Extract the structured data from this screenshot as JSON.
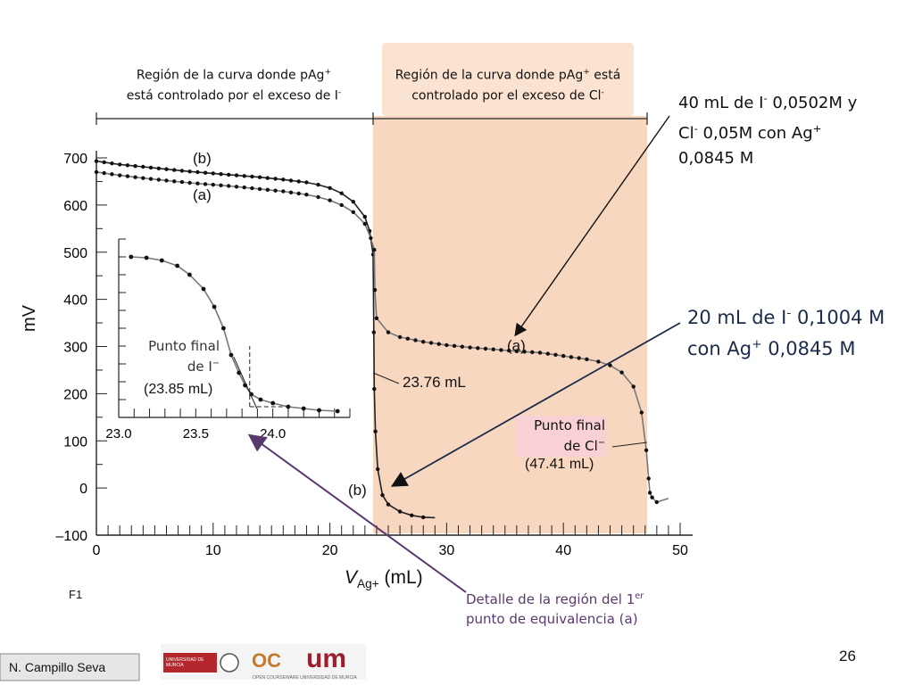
{
  "slide": {
    "page_number": "26",
    "author": "N. Campillo Seva",
    "figure_label": "F1",
    "logos": {
      "university": "UNIVERSIDAD DE MURCIA",
      "ocw": "OC",
      "um": "um",
      "ocw_caption": "OPEN COURSEWARE  UNIVERSIDAD DE MURCIA"
    }
  },
  "regions": {
    "left": {
      "line1": "Región  de la curva donde pAg",
      "sup1": "+",
      "line2": "está controlado por el exceso de I",
      "sup2": "-"
    },
    "right": {
      "line1": "Región de la curva donde pAg",
      "sup1": "+",
      "line1b": " está",
      "line2": "controlado por el exceso de Cl",
      "sup2": "-"
    }
  },
  "annotations": {
    "mix": {
      "l1a": "40 mL de I",
      "l1s": "-",
      "l1b": " 0,0502M y",
      "l2a": "Cl",
      "l2s": "-",
      "l2b": " 0,05M con Ag",
      "l2s2": "+",
      "l3": "0,0845 M"
    },
    "single": {
      "l1a": "20 mL de  I",
      "l1s": "-",
      "l1b": " 0,1004 M",
      "l2a": "con Ag",
      "l2s": "+",
      "l2b": " 0,0845 M"
    },
    "detail": {
      "l1a": "Detalle de la región del 1",
      "l1s": "er",
      "l2": "punto de equivalencia (a)"
    }
  },
  "colors": {
    "region_fill": "#f8d7c0",
    "region_fill_strong": "#f5c6a3",
    "title_box": "#fbe3d1",
    "pink_box": "#f9d0d4",
    "arrow_purple": "#5a3a6e",
    "curve_gray": "#777777"
  },
  "chart_data": {
    "type": "line",
    "xlabel_main": "V",
    "xlabel_sub": "Ag+",
    "xlabel_unit": " (mL)",
    "ylabel": "mV",
    "xlim": [
      0,
      50
    ],
    "ylim": [
      -100,
      700
    ],
    "x_ticks": [
      "0",
      "10",
      "20",
      "30",
      "40",
      "50"
    ],
    "y_ticks": [
      "700",
      "600",
      "500",
      "400",
      "300",
      "200",
      "100",
      "0",
      "–100"
    ],
    "series": [
      {
        "name": "(b)",
        "points": [
          [
            0,
            693
          ],
          [
            2,
            686
          ],
          [
            4,
            681
          ],
          [
            6,
            676
          ],
          [
            8,
            671
          ],
          [
            10,
            667
          ],
          [
            12,
            663
          ],
          [
            14,
            659
          ],
          [
            16,
            654
          ],
          [
            18,
            648
          ],
          [
            19,
            643
          ],
          [
            20,
            636
          ],
          [
            21,
            625
          ],
          [
            22,
            607
          ],
          [
            23,
            575
          ],
          [
            23.4,
            545
          ],
          [
            23.7,
            495
          ],
          [
            23.76,
            330
          ],
          [
            23.8,
            210
          ],
          [
            23.9,
            120
          ],
          [
            24.1,
            40
          ],
          [
            24.5,
            -15
          ],
          [
            25,
            -35
          ],
          [
            26,
            -50
          ],
          [
            27,
            -58
          ],
          [
            28,
            -62
          ],
          [
            29,
            -63
          ]
        ]
      },
      {
        "name": "(a)",
        "points": [
          [
            0,
            670
          ],
          [
            2,
            663
          ],
          [
            4,
            657
          ],
          [
            6,
            652
          ],
          [
            8,
            647
          ],
          [
            10,
            643
          ],
          [
            12,
            639
          ],
          [
            14,
            634
          ],
          [
            16,
            629
          ],
          [
            18,
            622
          ],
          [
            19,
            617
          ],
          [
            20,
            610
          ],
          [
            21,
            600
          ],
          [
            22,
            585
          ],
          [
            23,
            560
          ],
          [
            23.5,
            530
          ],
          [
            23.8,
            505
          ],
          [
            23.85,
            420
          ],
          [
            24,
            360
          ],
          [
            25,
            330
          ],
          [
            26,
            320
          ],
          [
            28,
            310
          ],
          [
            30,
            303
          ],
          [
            32,
            298
          ],
          [
            34,
            294
          ],
          [
            36,
            290
          ],
          [
            38,
            287
          ],
          [
            40,
            280
          ],
          [
            42,
            273
          ],
          [
            43,
            268
          ],
          [
            44,
            260
          ],
          [
            45,
            245
          ],
          [
            46,
            215
          ],
          [
            46.7,
            160
          ],
          [
            47.1,
            80
          ],
          [
            47.3,
            20
          ],
          [
            47.41,
            -10
          ],
          [
            47.6,
            -20
          ],
          [
            48,
            -30
          ],
          [
            49,
            -22
          ]
        ]
      }
    ],
    "inset": {
      "xlim": [
        23.0,
        24.5
      ],
      "ylim": [
        0,
        1
      ],
      "x_ticks": [
        "23.0",
        "23.5",
        "24.0"
      ],
      "points": [
        [
          23.08,
          0.9
        ],
        [
          23.18,
          0.895
        ],
        [
          23.28,
          0.88
        ],
        [
          23.38,
          0.85
        ],
        [
          23.46,
          0.8
        ],
        [
          23.55,
          0.72
        ],
        [
          23.62,
          0.62
        ],
        [
          23.68,
          0.5
        ],
        [
          23.73,
          0.35
        ],
        [
          23.78,
          0.25
        ],
        [
          23.82,
          0.18
        ],
        [
          23.86,
          0.13
        ],
        [
          23.92,
          0.1
        ],
        [
          24.0,
          0.08
        ],
        [
          24.1,
          0.06
        ],
        [
          24.2,
          0.05
        ],
        [
          24.3,
          0.04
        ],
        [
          24.42,
          0.035
        ]
      ],
      "endpoint_x": 23.85,
      "label_line1": "Punto final",
      "label_line2a": "de I",
      "label_line2s": "−",
      "label_value": "(23.85 mL)"
    },
    "labels": {
      "b_upper": "(b)",
      "a_upper": "(a)",
      "a_mid": "(a)",
      "b_lower": "(b)",
      "first_eq": "23.76 mL",
      "cl_line1": "Punto final",
      "cl_line2a": "de Cl",
      "cl_line2s": "−",
      "cl_value": "(47.41 mL)"
    }
  }
}
